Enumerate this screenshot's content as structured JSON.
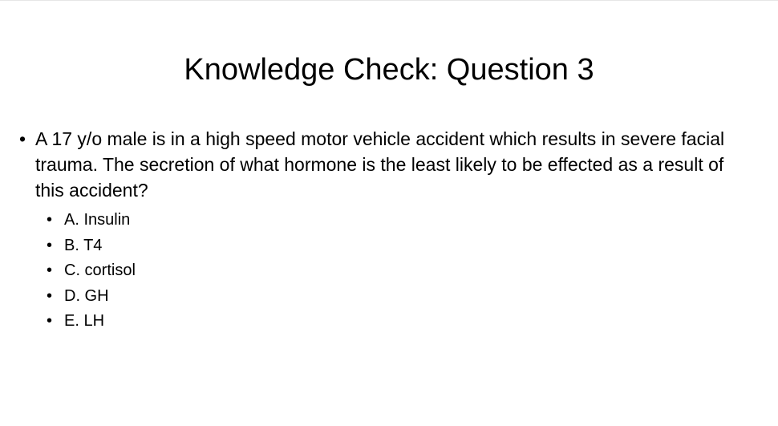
{
  "slide": {
    "title": "Knowledge Check: Question 3",
    "question": "A 17 y/o male is in a high speed motor vehicle accident which results in severe facial trauma. The secretion of what hormone is the least likely to be effected as a result of this accident?",
    "bullet": "•",
    "options": [
      "A. Insulin",
      "B. T4",
      "C. cortisol",
      "D. GH",
      "E. LH"
    ]
  }
}
